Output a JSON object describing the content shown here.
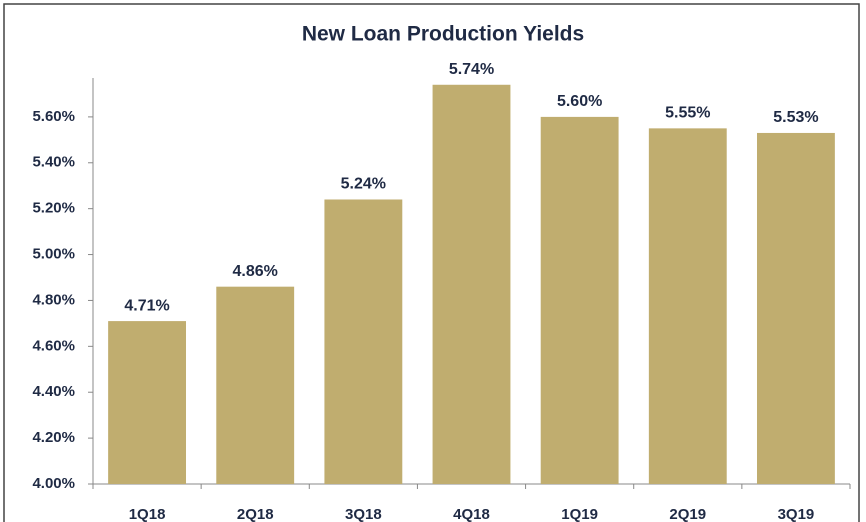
{
  "chart_data": {
    "type": "bar",
    "title": "New Loan Production Yields",
    "categories": [
      "1Q18",
      "2Q18",
      "3Q18",
      "4Q18",
      "1Q19",
      "2Q19",
      "3Q19"
    ],
    "values": [
      4.71,
      4.86,
      5.24,
      5.74,
      5.6,
      5.55,
      5.53
    ],
    "value_labels": [
      "4.71%",
      "4.86%",
      "5.24%",
      "5.74%",
      "5.60%",
      "5.55%",
      "5.53%"
    ],
    "color": "#c0ad6f",
    "ylim": [
      4.0,
      5.8
    ],
    "yticks": [
      {
        "value": 4.0,
        "label": "4.00%"
      },
      {
        "value": 4.2,
        "label": "4.20%"
      },
      {
        "value": 4.4,
        "label": "4.40%"
      },
      {
        "value": 4.6,
        "label": "4.60%"
      },
      {
        "value": 4.8,
        "label": "4.80%"
      },
      {
        "value": 5.0,
        "label": "5.00%"
      },
      {
        "value": 5.2,
        "label": "5.20%"
      },
      {
        "value": 5.4,
        "label": "5.40%"
      },
      {
        "value": 5.6,
        "label": "5.60%"
      }
    ],
    "grid": false
  }
}
